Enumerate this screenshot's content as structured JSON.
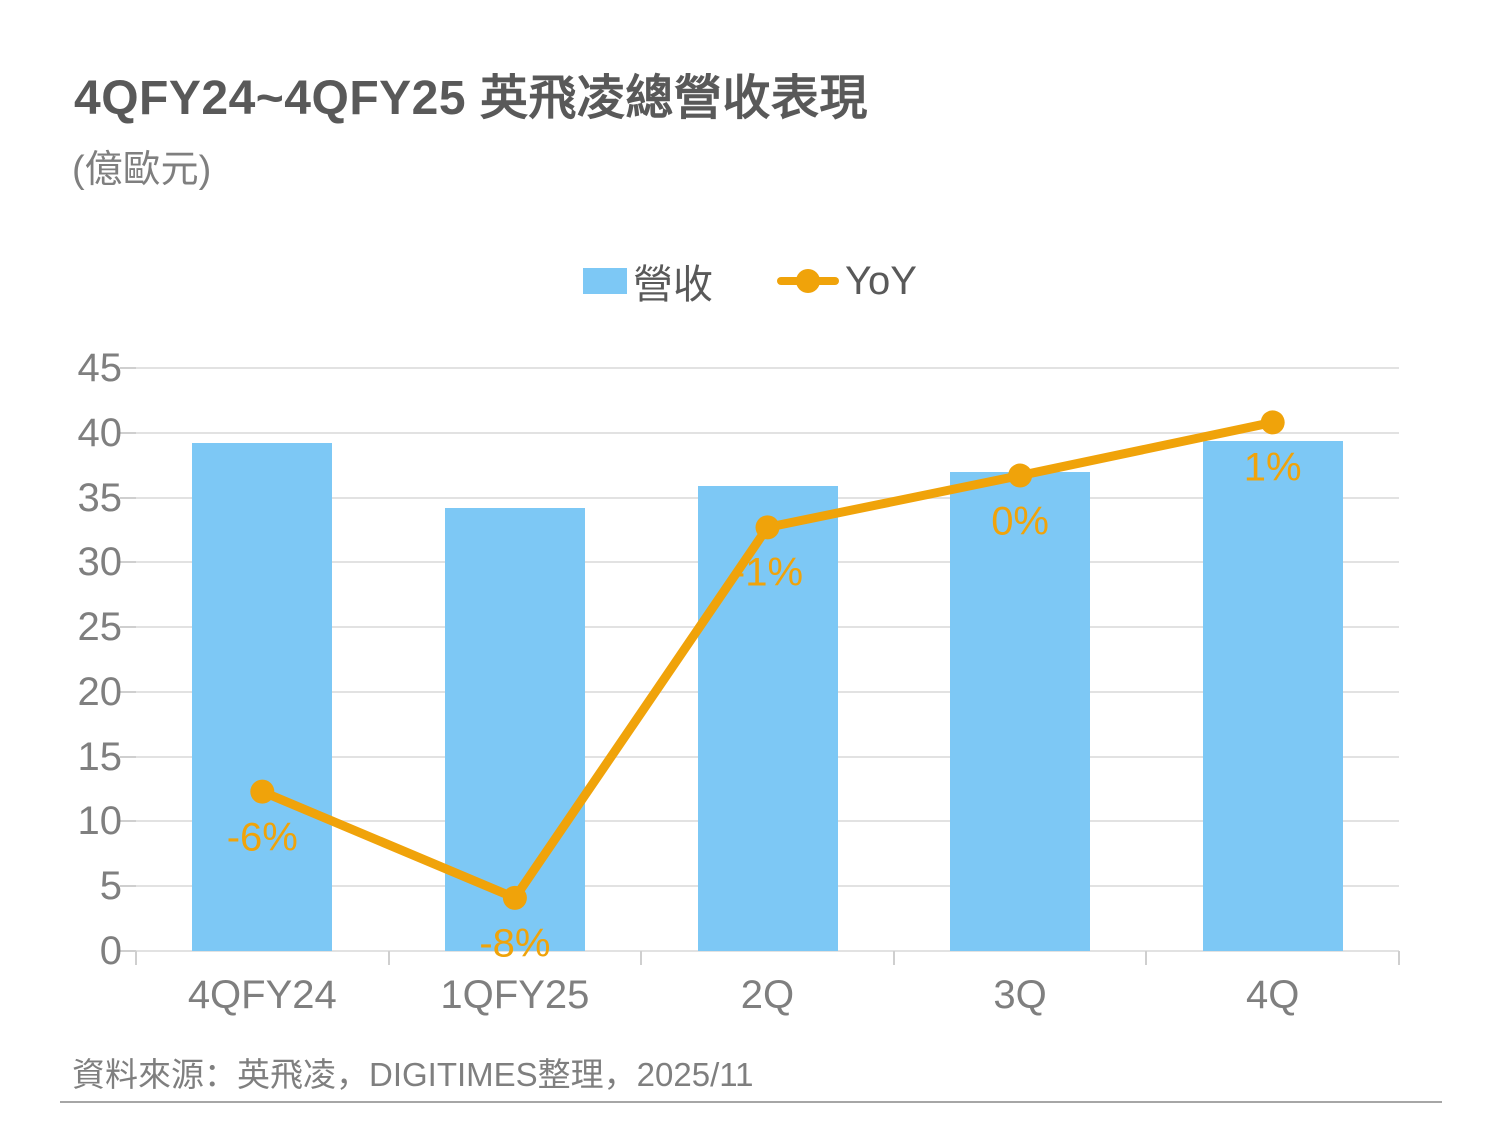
{
  "header": {
    "title": "4QFY24~4QFY25 英飛凌總營收表現",
    "unit": "(億歐元)"
  },
  "footer": {
    "source": "資料來源：英飛凌，DIGITIMES整理，2025/11"
  },
  "colors": {
    "bar": "#7dc8f5",
    "line": "#f0a30a",
    "grid": "#e2e2e2",
    "title_text": "#595959",
    "axis_text": "#7f7f7f"
  },
  "chart_data": {
    "type": "bar",
    "combo": "bar-with-line-overlay",
    "title": "4QFY24~4QFY25 英飛凌總營收表現",
    "unit_label": "(億歐元)",
    "categories": [
      "4QFY24",
      "1QFY25",
      "2Q",
      "3Q",
      "4Q"
    ],
    "ylim": [
      0,
      45
    ],
    "ytick_step": 5,
    "yticks": [
      0,
      5,
      10,
      15,
      20,
      25,
      30,
      35,
      40,
      45
    ],
    "grid": true,
    "legend_position": "top-center",
    "series": [
      {
        "name": "營收",
        "type": "bar",
        "axis": "primary-left",
        "color": "#7dc8f5",
        "values": [
          39.2,
          34.2,
          35.9,
          37.0,
          39.4
        ]
      },
      {
        "name": "YoY",
        "type": "line",
        "axis": "secondary-hidden",
        "color": "#f0a30a",
        "values_pct": [
          -6,
          -8,
          -1,
          0,
          1
        ],
        "labels": [
          "-6%",
          "-8%",
          "-1%",
          "0%",
          "1%"
        ],
        "plotted_on_left_axis": [
          12.3,
          4.1,
          32.7,
          36.7,
          40.8
        ]
      }
    ]
  }
}
